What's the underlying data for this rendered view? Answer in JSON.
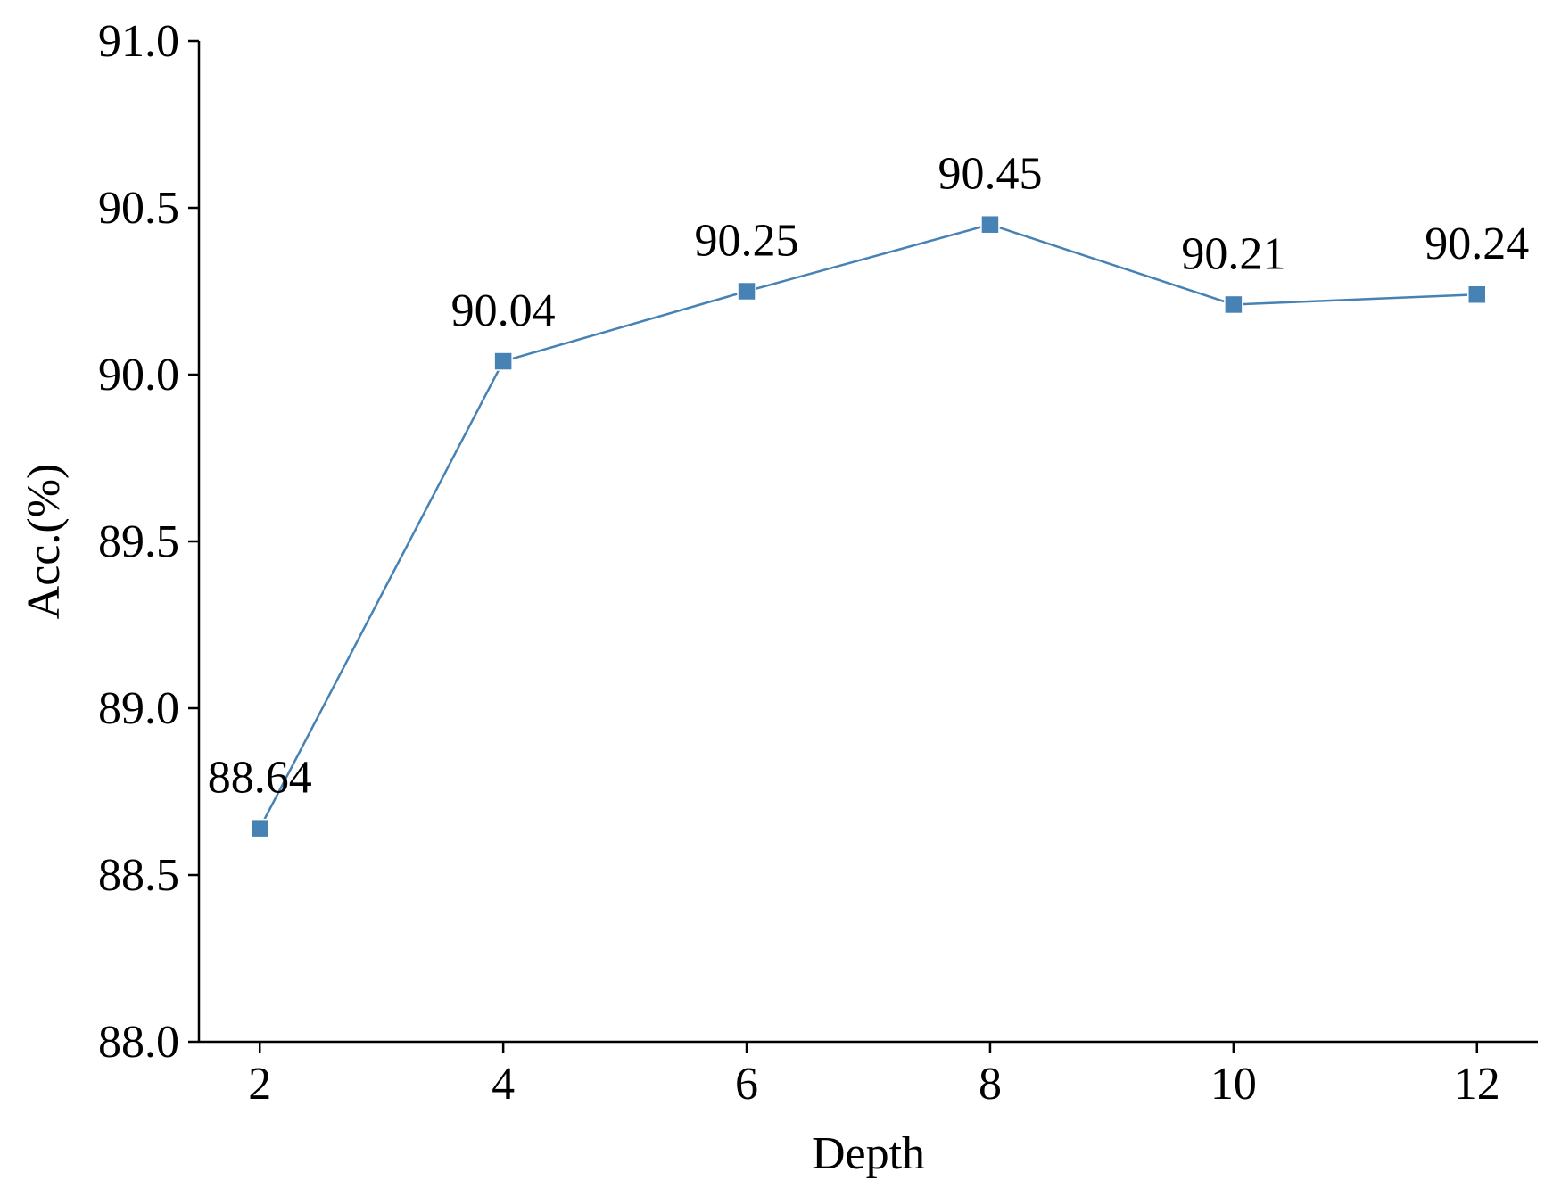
{
  "chart_data": {
    "type": "line",
    "title": "",
    "xlabel": "Depth",
    "ylabel": "Acc.(%)",
    "x": [
      2,
      4,
      6,
      8,
      10,
      12
    ],
    "x_ticks": [
      "2",
      "4",
      "6",
      "8",
      "10",
      "12"
    ],
    "xlim": [
      1.5,
      12.5
    ],
    "ylim": [
      88.0,
      91.0
    ],
    "y_ticks": [
      "88.0",
      "88.5",
      "89.0",
      "89.5",
      "90.0",
      "90.5",
      "91.0"
    ],
    "series": [
      {
        "values": [
          88.64,
          90.04,
          90.25,
          90.45,
          90.21,
          90.24
        ],
        "data_labels": [
          "88.64",
          "90.04",
          "90.25",
          "90.45",
          "90.21",
          "90.24"
        ],
        "color": "#4682b4",
        "marker": "square"
      }
    ],
    "grid": false,
    "legend": "none",
    "spines": "left-bottom"
  }
}
